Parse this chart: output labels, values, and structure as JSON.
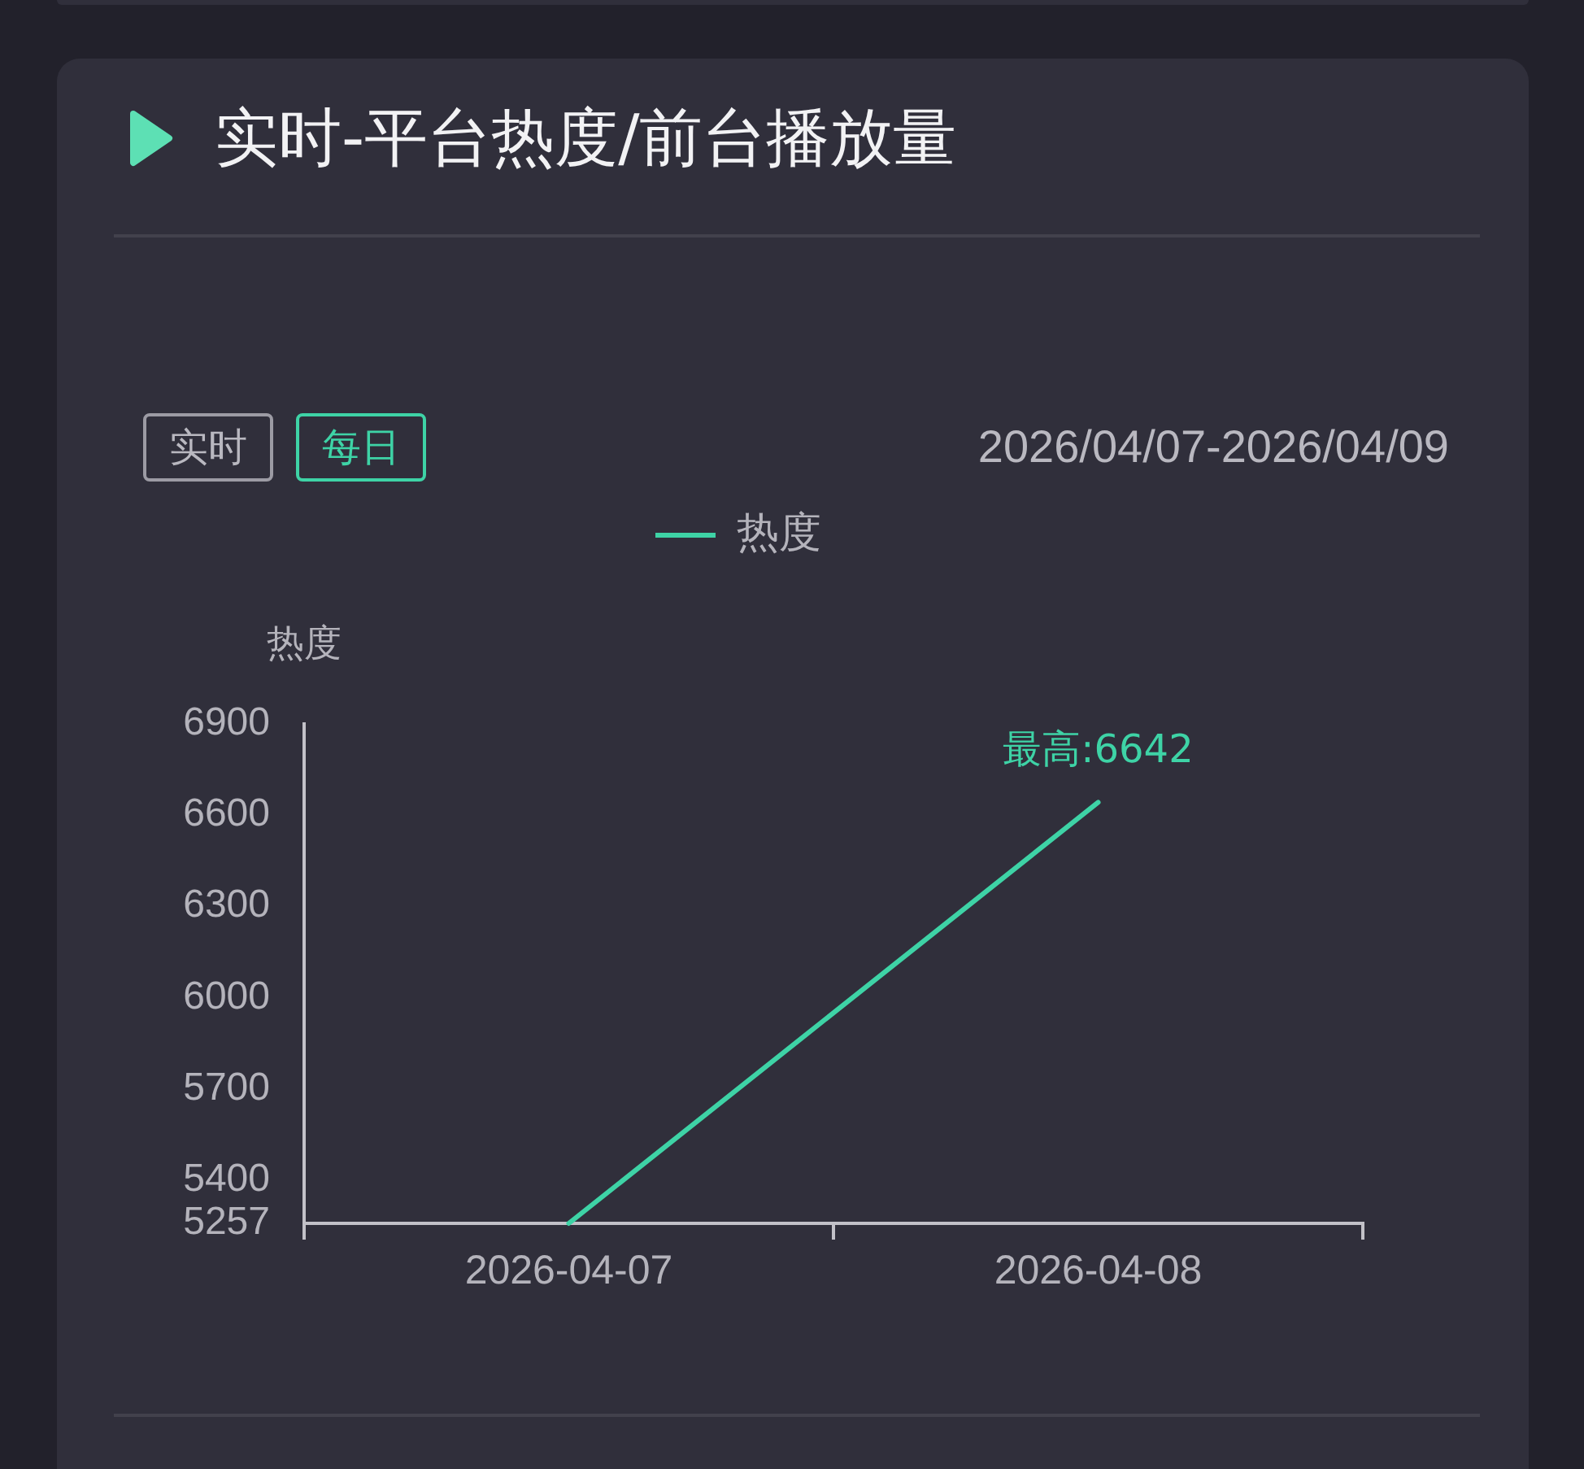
{
  "chart_data": {
    "type": "line",
    "title": "实时-平台热度/前台播放量",
    "subtitle": "2026/04/07-2026/04/09",
    "annotations": [
      "实时",
      "每日",
      {
        "text": "最高:6642",
        "x": "2026-04-08",
        "y": 6642
      }
    ],
    "ylabel": "热度",
    "categories": [
      "2026-04-07",
      "2026-04-08"
    ],
    "series": [
      {
        "name": "热度",
        "color": "#3ed3a6",
        "values": [
          5257,
          6642
        ]
      }
    ],
    "ylim": [
      5257,
      6900
    ],
    "yticks": [
      5257,
      5400,
      5700,
      6000,
      6300,
      6600,
      6900
    ],
    "legend": "top",
    "marker": "none"
  }
}
